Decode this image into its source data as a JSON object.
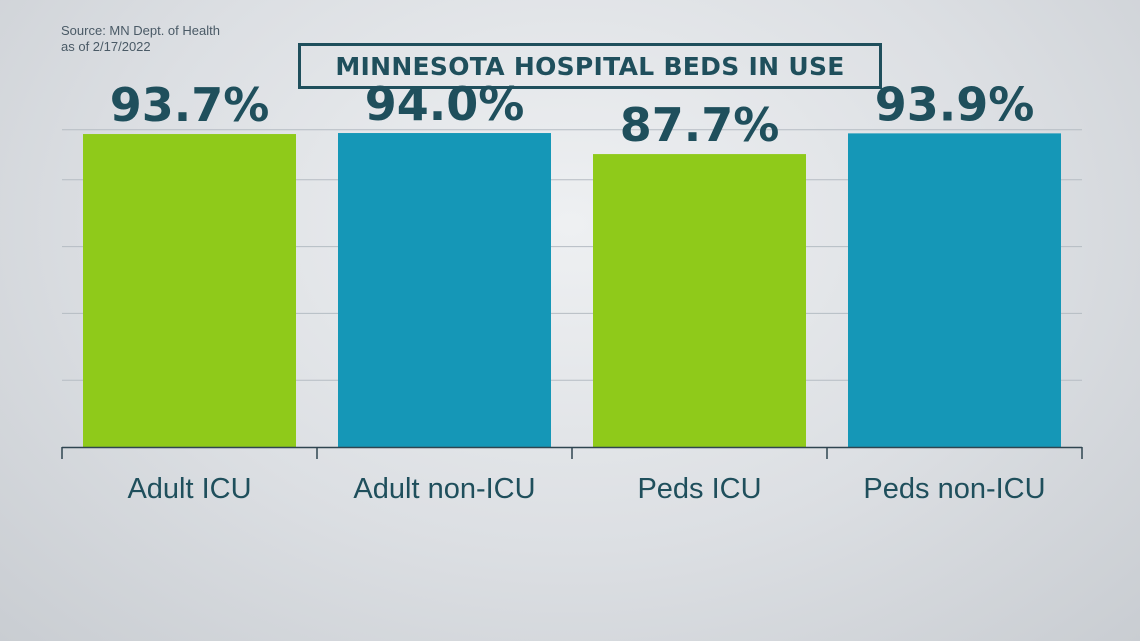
{
  "source": {
    "line1": "Source: MN Dept. of Health",
    "line2": "as of 2/17/2022"
  },
  "chart_data": {
    "type": "bar",
    "title": "MINNESOTA HOSPITAL BEDS IN USE",
    "xlabel": "",
    "ylabel": "",
    "ylim": [
      0,
      100
    ],
    "grid": true,
    "categories": [
      "Adult ICU",
      "Adult non-ICU",
      "Peds ICU",
      "Peds non-ICU"
    ],
    "values": [
      93.7,
      94.0,
      87.7,
      93.9
    ],
    "data_labels": [
      "93.7%",
      "94.0%",
      "87.7%",
      "93.9%"
    ],
    "colors": [
      "#8fca1a",
      "#1597b7",
      "#8fca1a",
      "#1597b7"
    ],
    "text_color": "#1f4f5c"
  }
}
